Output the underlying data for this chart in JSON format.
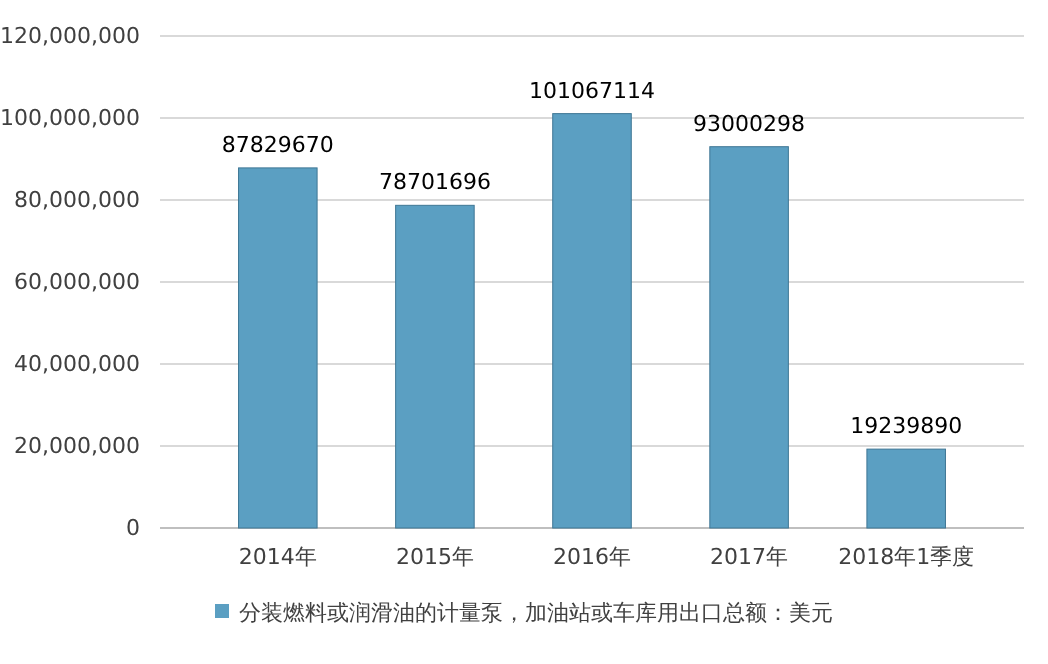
{
  "chart_data": {
    "type": "bar",
    "categories": [
      "2014年",
      "2015年",
      "2016年",
      "2017年",
      "2018年1季度"
    ],
    "series": [
      {
        "name": "分装燃料或润滑油的计量泵，加油站或车库用出口总额：美元",
        "color": "#5b9fc2",
        "values": [
          87829670,
          78701696,
          101067114,
          93000298,
          19239890
        ]
      }
    ],
    "ylim": [
      0,
      120000000
    ],
    "yticks": [
      {
        "value": 0,
        "label": "0"
      },
      {
        "value": 20000000,
        "label": "20,000,000"
      },
      {
        "value": 40000000,
        "label": "40,000,000"
      },
      {
        "value": 60000000,
        "label": "60,000,000"
      },
      {
        "value": 80000000,
        "label": "80,000,000"
      },
      {
        "value": 100000000,
        "label": "100,000,000"
      },
      {
        "value": 120000000,
        "label": "120,000,000"
      }
    ],
    "grid": "y",
    "legend": "bottom",
    "data_labels": true
  }
}
